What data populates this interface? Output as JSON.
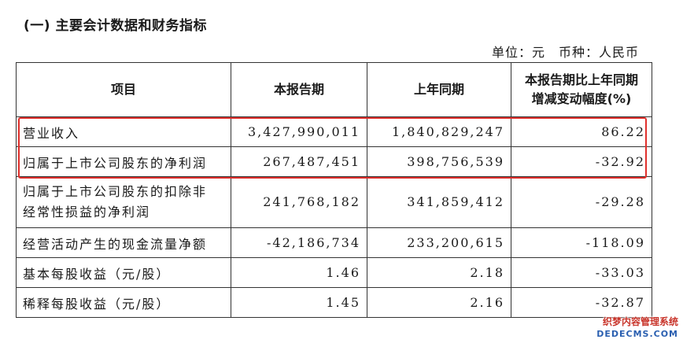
{
  "section_title": "(一) 主要会计数据和财务指标",
  "unit_line": "单位：元　币种：人民币",
  "table": {
    "headers": {
      "item": "项目",
      "current": "本报告期",
      "prior": "上年同期",
      "change_line1": "本报告期比上年同期",
      "change_line2": "增减变动幅度(%)"
    },
    "rows": [
      {
        "item": "营业收入",
        "current": "3,427,990,011",
        "prior": "1,840,829,247",
        "change": "86.22"
      },
      {
        "item": "归属于上市公司股东的净利润",
        "current": "267,487,451",
        "prior": "398,756,539",
        "change": "-32.92"
      },
      {
        "item_line1": "归属于上市公司股东的扣除非",
        "item_line2": "经常性损益的净利润",
        "current": "241,768,182",
        "prior": "341,859,412",
        "change": "-29.28"
      },
      {
        "item": "经营活动产生的现金流量净额",
        "current": "-42,186,734",
        "prior": "233,200,615",
        "change": "-118.09"
      },
      {
        "item": "基本每股收益（元/股）",
        "current": "1.46",
        "prior": "2.18",
        "change": "-33.03"
      },
      {
        "item": "稀释每股收益（元/股）",
        "current": "1.45",
        "prior": "2.16",
        "change": "-32.87"
      }
    ]
  },
  "highlight": {
    "color": "#e0302c",
    "rows_highlighted": [
      "营业收入",
      "归属于上市公司股东的净利润"
    ]
  },
  "watermark": {
    "line1": "织梦内容管理系统",
    "line2": "DEDECMS.COM"
  }
}
